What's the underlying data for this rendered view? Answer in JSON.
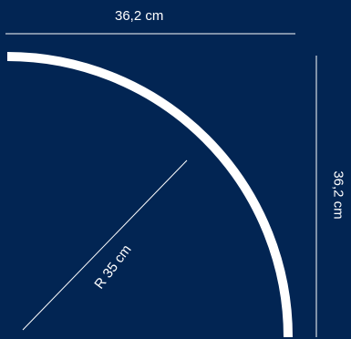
{
  "dimensions": {
    "width_label": "36,2 cm",
    "height_label": "36,2 cm",
    "radius_label": "R 35 cm"
  },
  "colors": {
    "background": "#022553",
    "foreground": "#ffffff"
  }
}
